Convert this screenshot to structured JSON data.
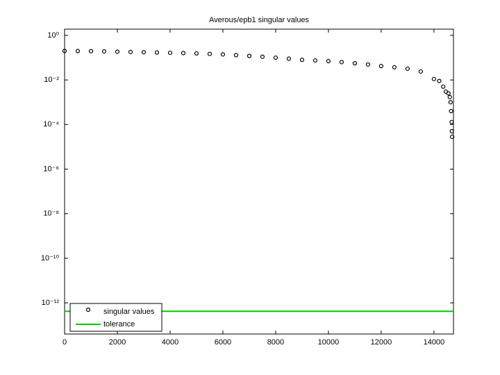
{
  "chart_data": {
    "type": "scatter",
    "title": "Averous/epb1 singular values",
    "xlim": [
      0,
      14740
    ],
    "xticks": [
      0,
      2000,
      4000,
      6000,
      8000,
      10000,
      12000,
      14000
    ],
    "ylim": [
      4e-14,
      1.9
    ],
    "log_y": true,
    "yticks": [
      {
        "value": 1,
        "label": "10⁰"
      },
      {
        "value": 0.01,
        "label": "10⁻²"
      },
      {
        "value": 0.0001,
        "label": "10⁻⁴"
      },
      {
        "value": 1e-06,
        "label": "10⁻⁶"
      },
      {
        "value": 1e-08,
        "label": "10⁻⁸"
      },
      {
        "value": 1e-10,
        "label": "10⁻¹⁰"
      },
      {
        "value": 1e-12,
        "label": "10⁻¹²"
      }
    ],
    "grid": false,
    "legend": "lower left",
    "series": [
      {
        "name": "singular values",
        "color": "#000000",
        "x": [
          0,
          500,
          1000,
          1500,
          2000,
          2500,
          3000,
          3500,
          4000,
          4500,
          5000,
          5500,
          6000,
          6500,
          7000,
          7500,
          8000,
          8500,
          9000,
          9500,
          10000,
          10500,
          11000,
          11500,
          12000,
          12500,
          13000,
          13500,
          14000,
          14200,
          14350,
          14450,
          14550,
          14600,
          14630,
          14650,
          14670,
          14680,
          14690
        ],
        "values": [
          0.2,
          0.198,
          0.195,
          0.19,
          0.185,
          0.18,
          0.175,
          0.17,
          0.165,
          0.16,
          0.155,
          0.148,
          0.14,
          0.13,
          0.12,
          0.11,
          0.1,
          0.09,
          0.08,
          0.075,
          0.07,
          0.063,
          0.056,
          0.049,
          0.042,
          0.037,
          0.032,
          0.024,
          0.011,
          0.009,
          0.005,
          0.003,
          0.0025,
          0.0017,
          0.001,
          0.0004,
          0.00013,
          5e-05,
          2.8e-05
        ]
      },
      {
        "name": "tolerance",
        "color": "#00cc00",
        "value": 4.2e-13
      }
    ]
  }
}
